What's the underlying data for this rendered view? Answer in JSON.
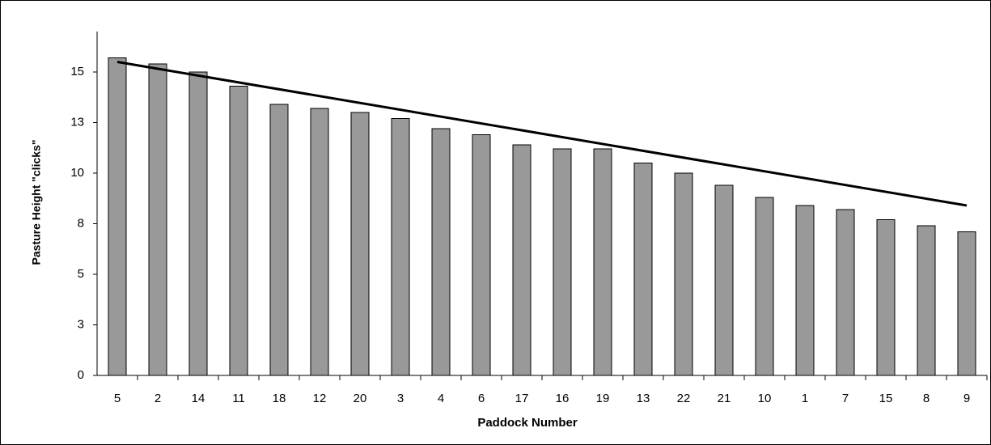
{
  "chart_data": {
    "type": "bar",
    "x_label": "Paddock Number",
    "y_label": "Pasture Height \"clicks\"",
    "categories": [
      "5",
      "2",
      "14",
      "11",
      "18",
      "12",
      "20",
      "3",
      "4",
      "6",
      "17",
      "16",
      "19",
      "13",
      "22",
      "21",
      "10",
      "1",
      "7",
      "15",
      "8",
      "9"
    ],
    "values": [
      15.7,
      15.4,
      15.0,
      14.3,
      13.4,
      13.2,
      13.0,
      12.7,
      12.2,
      11.9,
      11.4,
      11.2,
      11.2,
      10.5,
      10.0,
      9.4,
      8.8,
      8.4,
      8.2,
      7.7,
      7.4,
      7.1
    ],
    "color": "#999999",
    "trendline": {
      "values": [
        15.5,
        8.4
      ],
      "color": "#000000"
    },
    "ylim": [
      0,
      17
    ],
    "yticks": [
      0,
      {
        "value": 2.5,
        "label": "3"
      },
      5,
      {
        "value": 7.5,
        "label": "8"
      },
      10,
      {
        "value": 12.5,
        "label": "13"
      },
      15
    ]
  }
}
